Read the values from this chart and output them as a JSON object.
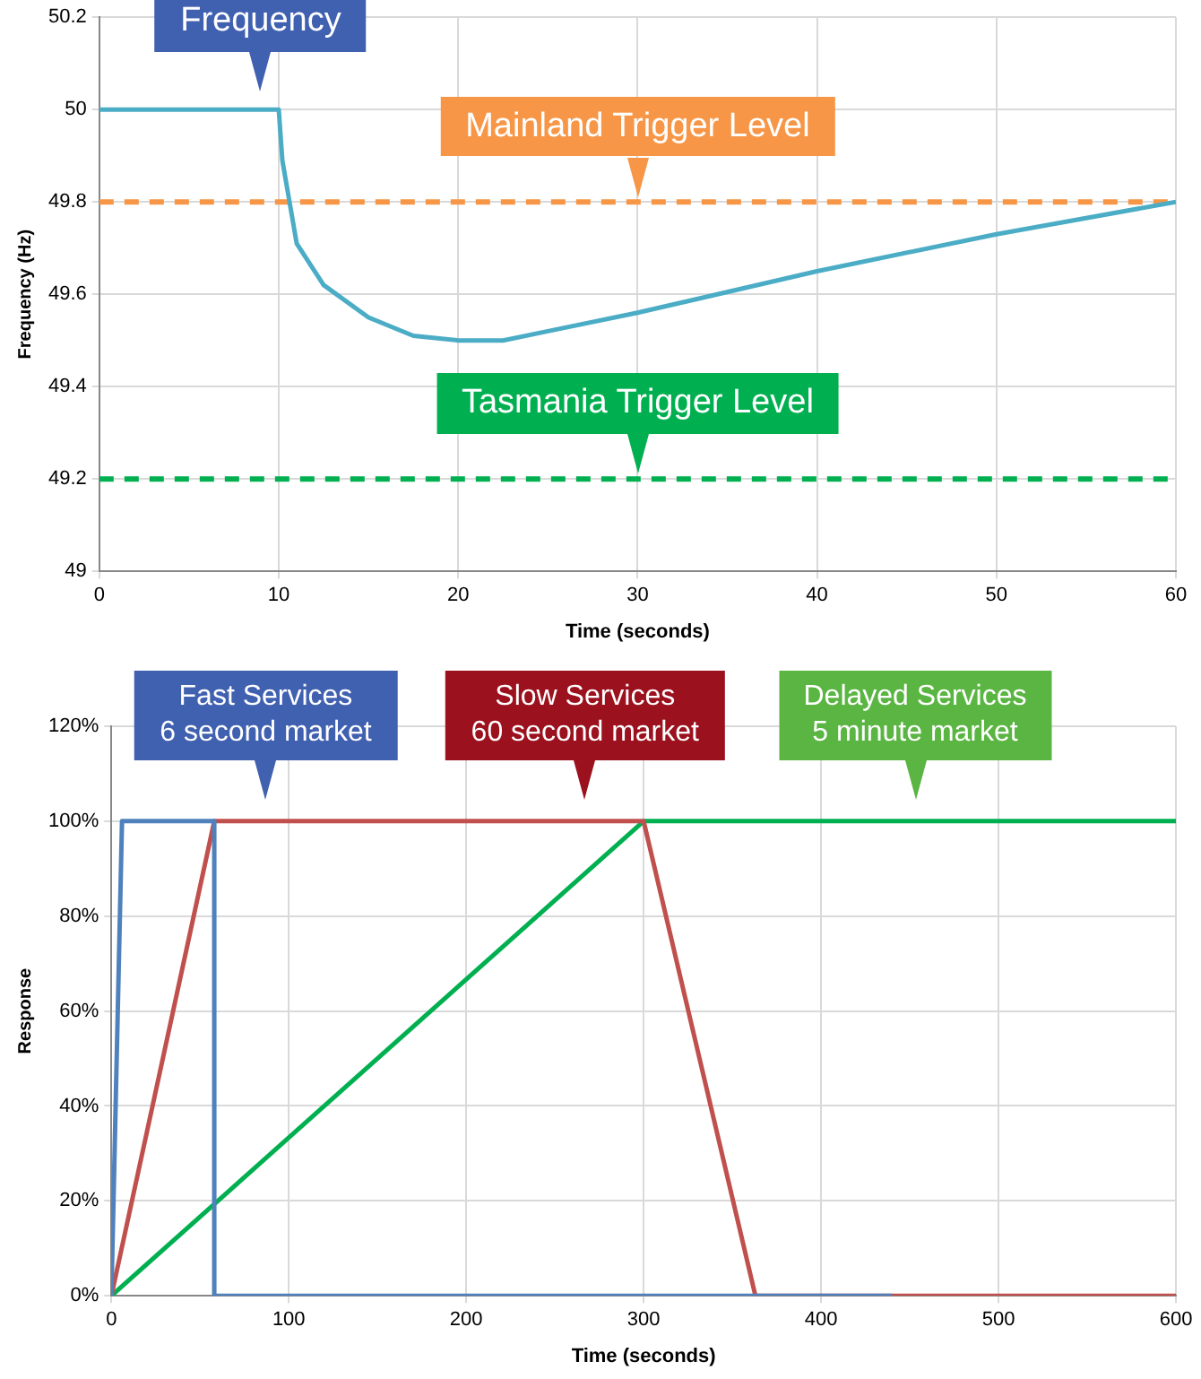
{
  "chart_data": [
    {
      "type": "line",
      "xlabel": "Time (seconds)",
      "ylabel": "Frequency (Hz)",
      "xlim": [
        0,
        60
      ],
      "xticks": [
        0,
        10,
        20,
        30,
        40,
        50,
        60
      ],
      "ylim": [
        49,
        50.2
      ],
      "yticks": [
        49,
        49.2,
        49.4,
        49.6,
        49.8,
        50,
        50.2
      ],
      "grid": true,
      "legend": false,
      "marker": "none",
      "series": [
        {
          "color": "#4bacc6",
          "x": [
            0,
            10,
            10.2,
            11,
            12.5,
            15,
            17.5,
            20,
            22.5,
            25,
            30,
            40,
            50,
            60
          ],
          "values": [
            50,
            50,
            49.89,
            49.71,
            49.62,
            49.55,
            49.51,
            49.5,
            49.5,
            49.52,
            49.56,
            49.65,
            49.73,
            49.8
          ]
        }
      ],
      "ref_lines": [
        {
          "axis": "y",
          "value": 49.8,
          "label": "Mainland Trigger Level",
          "color": "#f79646",
          "line_style": "dashed"
        },
        {
          "axis": "y",
          "value": 49.2,
          "label": "Tasmania Trigger Level",
          "color": "#00b050",
          "line_style": "dashed"
        }
      ],
      "annotations": [
        {
          "text": "Frequency",
          "x": 9,
          "y": 50
        }
      ]
    },
    {
      "type": "line",
      "xlabel": "Time (seconds)",
      "ylabel": "Response",
      "xlim": [
        0,
        600
      ],
      "xticks": [
        0,
        100,
        200,
        300,
        400,
        500,
        600
      ],
      "ylim": [
        0,
        120
      ],
      "yticks": [
        {
          "value": 0,
          "label": "0%"
        },
        {
          "value": 20,
          "label": "20%"
        },
        {
          "value": 40,
          "label": "40%"
        },
        {
          "value": 60,
          "label": "60%"
        },
        {
          "value": 80,
          "label": "80%"
        },
        {
          "value": 100,
          "label": "100%"
        },
        {
          "value": 120,
          "label": "120%"
        }
      ],
      "grid": true,
      "legend": false,
      "marker": "none",
      "series": [
        {
          "color": "#4f81bd",
          "x": [
            0,
            6,
            58,
            58,
            440
          ],
          "values": [
            0,
            100,
            100,
            0,
            0
          ]
        },
        {
          "color": "#c0504d",
          "x": [
            0,
            58,
            300,
            363,
            600
          ],
          "values": [
            0,
            100,
            100,
            0,
            0
          ]
        },
        {
          "color": "#00b050",
          "x": [
            0,
            300,
            600
          ],
          "values": [
            0,
            100,
            100
          ]
        }
      ],
      "annotations": [
        "Fast Services\n6 second market",
        "Slow Services\n60 second market",
        "Delayed Services\n5 minute market"
      ]
    }
  ]
}
